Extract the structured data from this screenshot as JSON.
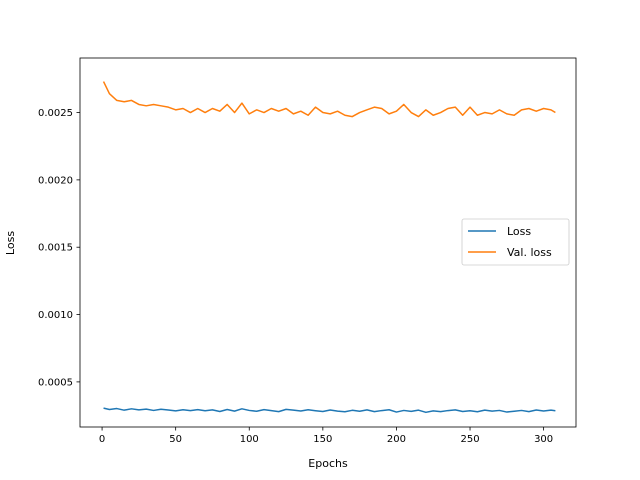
{
  "chart_data": {
    "type": "line",
    "xlabel": "Epochs",
    "ylabel": "Loss",
    "xlim": [
      -15,
      322
    ],
    "ylim": [
      0.000165,
      0.002905
    ],
    "xticks": [
      0,
      50,
      100,
      150,
      200,
      250,
      300
    ],
    "yticks": [
      0.0005,
      0.001,
      0.0015,
      0.002,
      0.0025
    ],
    "ytick_labels": [
      "0.0005",
      "0.0010",
      "0.0015",
      "0.0020",
      "0.0025"
    ],
    "legend_position": "center-right",
    "grid": false,
    "series": [
      {
        "name": "Loss",
        "color": "#1f77b4",
        "x": [
          1,
          5,
          10,
          15,
          20,
          25,
          30,
          35,
          40,
          45,
          50,
          55,
          60,
          65,
          70,
          75,
          80,
          85,
          90,
          95,
          100,
          105,
          110,
          115,
          120,
          125,
          130,
          135,
          140,
          145,
          150,
          155,
          160,
          165,
          170,
          175,
          180,
          185,
          190,
          195,
          200,
          205,
          210,
          215,
          220,
          225,
          230,
          235,
          240,
          245,
          250,
          255,
          260,
          265,
          270,
          275,
          280,
          285,
          290,
          295,
          300,
          305,
          308
        ],
        "y": [
          0.000305,
          0.000295,
          0.000302,
          0.00029,
          0.0003,
          0.000292,
          0.000298,
          0.000288,
          0.000297,
          0.000291,
          0.000285,
          0.000293,
          0.000287,
          0.000294,
          0.000286,
          0.000292,
          0.00028,
          0.000295,
          0.000283,
          0.0003,
          0.000288,
          0.000282,
          0.000294,
          0.000287,
          0.000279,
          0.000296,
          0.00029,
          0.000284,
          0.000293,
          0.000286,
          0.00028,
          0.000291,
          0.000283,
          0.000278,
          0.000289,
          0.000282,
          0.000292,
          0.000279,
          0.000287,
          0.000293,
          0.000276,
          0.000288,
          0.000281,
          0.00029,
          0.000274,
          0.000285,
          0.000279,
          0.000287,
          0.000292,
          0.00028,
          0.000286,
          0.000278,
          0.00029,
          0.000283,
          0.000288,
          0.000276,
          0.000282,
          0.000288,
          0.000279,
          0.000291,
          0.000284,
          0.00029,
          0.000286
        ]
      },
      {
        "name": "Val. loss",
        "color": "#ff7f0e",
        "x": [
          1,
          5,
          10,
          15,
          20,
          25,
          30,
          35,
          40,
          45,
          50,
          55,
          60,
          65,
          70,
          75,
          80,
          85,
          90,
          95,
          100,
          105,
          110,
          115,
          120,
          125,
          130,
          135,
          140,
          145,
          150,
          155,
          160,
          165,
          170,
          175,
          180,
          185,
          190,
          195,
          200,
          205,
          210,
          215,
          220,
          225,
          230,
          235,
          240,
          245,
          250,
          255,
          260,
          265,
          270,
          275,
          280,
          285,
          290,
          295,
          300,
          305,
          308
        ],
        "y": [
          0.00273,
          0.00264,
          0.00259,
          0.00258,
          0.00259,
          0.00256,
          0.00255,
          0.00256,
          0.00255,
          0.00254,
          0.00252,
          0.00253,
          0.0025,
          0.00253,
          0.0025,
          0.00253,
          0.00251,
          0.00256,
          0.0025,
          0.00257,
          0.00249,
          0.00252,
          0.0025,
          0.00253,
          0.00251,
          0.00253,
          0.00249,
          0.00251,
          0.00248,
          0.00254,
          0.0025,
          0.00249,
          0.00251,
          0.00248,
          0.00247,
          0.0025,
          0.00252,
          0.00254,
          0.00253,
          0.00249,
          0.00251,
          0.00256,
          0.0025,
          0.00247,
          0.00252,
          0.00248,
          0.0025,
          0.00253,
          0.00254,
          0.00248,
          0.00254,
          0.00248,
          0.0025,
          0.00249,
          0.00252,
          0.00249,
          0.00248,
          0.00252,
          0.00253,
          0.00251,
          0.00253,
          0.00252,
          0.0025
        ]
      }
    ]
  }
}
